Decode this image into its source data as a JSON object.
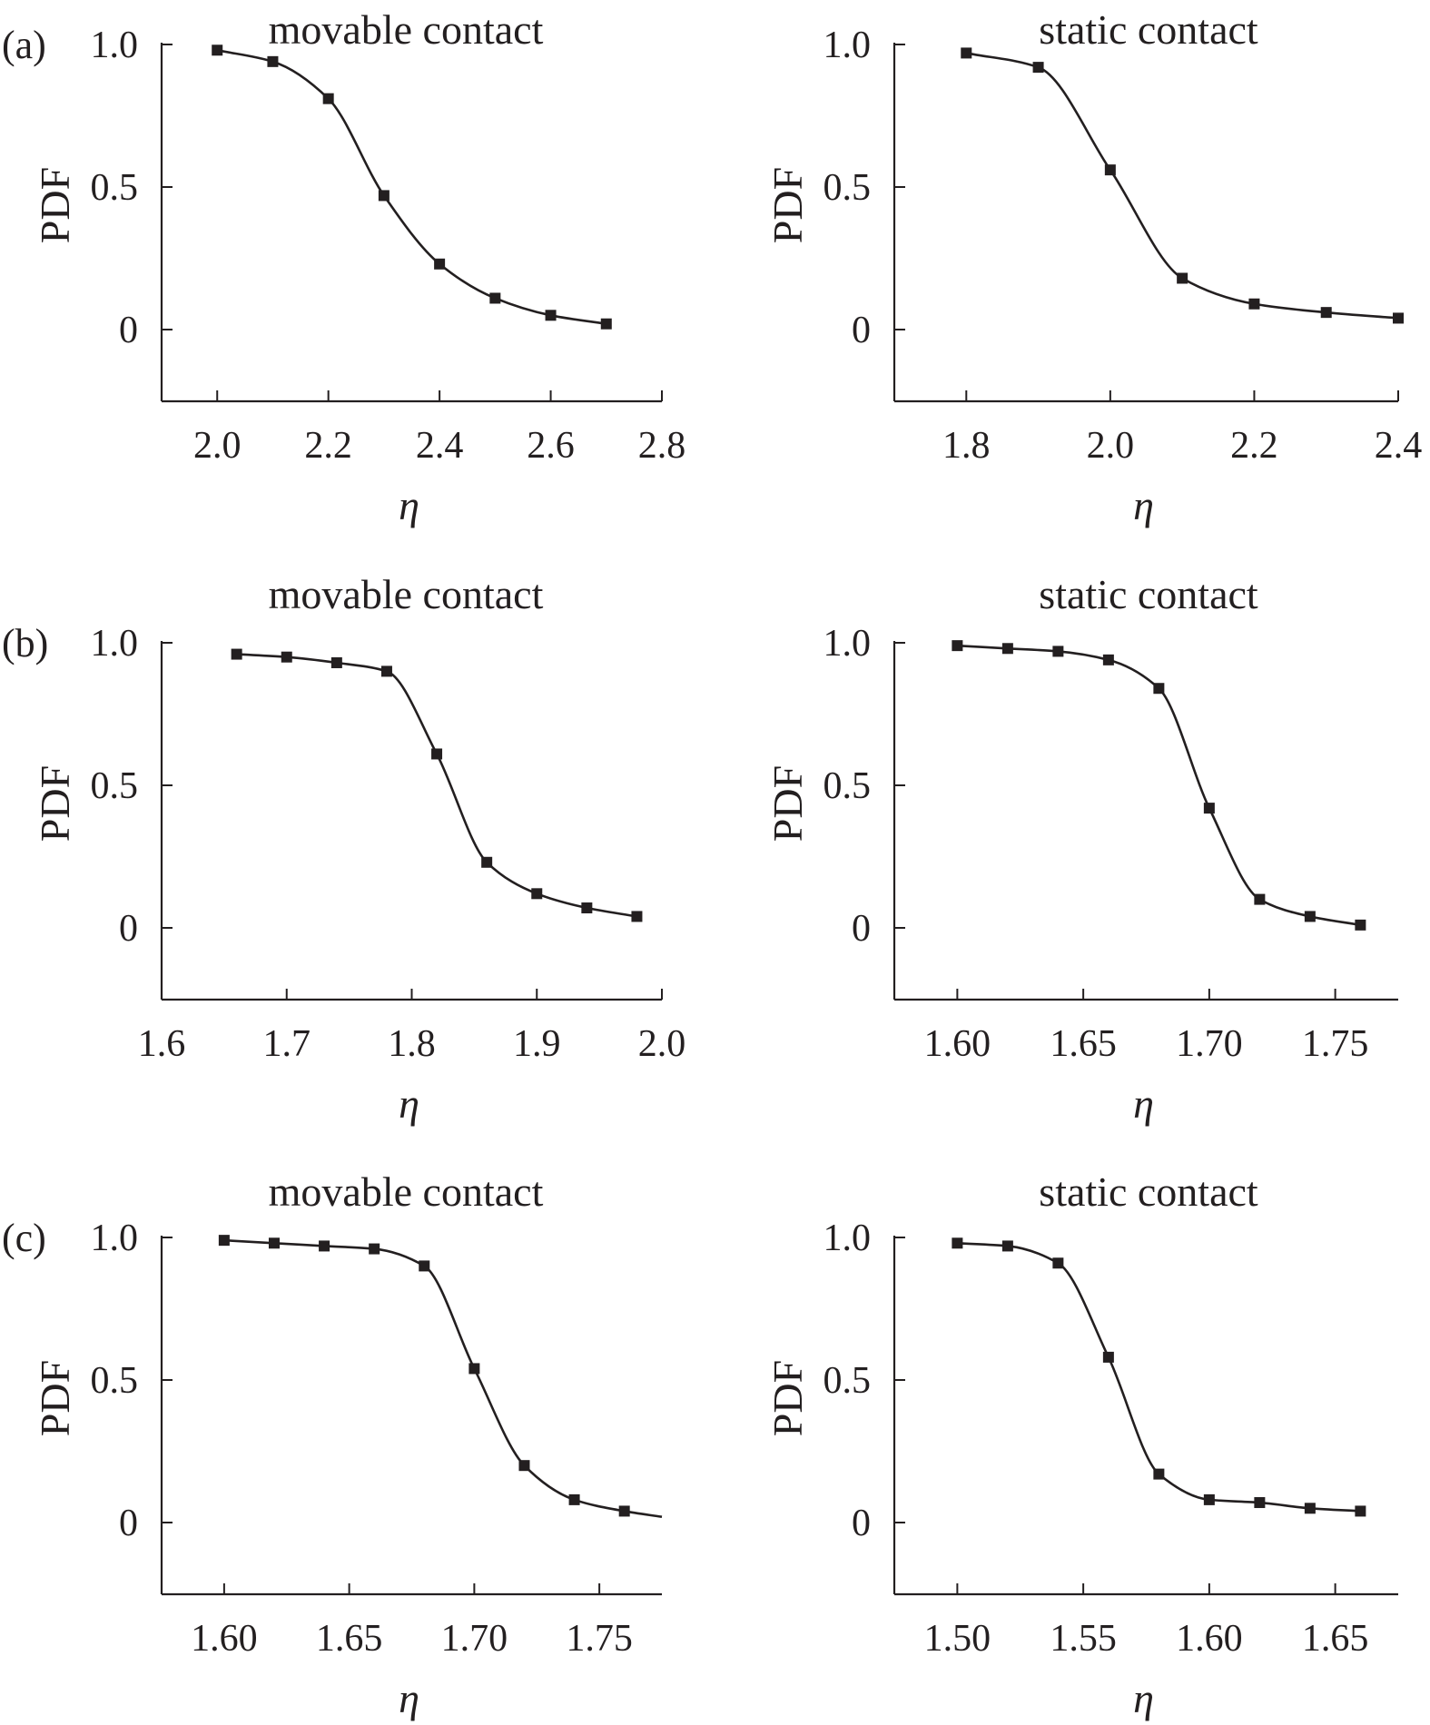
{
  "chart_data": [
    {
      "type": "line",
      "panel_label": "(a)",
      "title": "movable contact",
      "xlabel": "η",
      "ylabel": "PDF",
      "xlim": [
        1.9,
        2.8
      ],
      "ylim": [
        -0.25,
        1.0
      ],
      "xticks": [
        "2.0",
        "2.2",
        "2.4",
        "2.6",
        "2.8"
      ],
      "yticks": [
        "1.0",
        "0.5",
        "0"
      ],
      "x": [
        2.0,
        2.1,
        2.2,
        2.3,
        2.4,
        2.5,
        2.6,
        2.7
      ],
      "y": [
        0.98,
        0.94,
        0.81,
        0.47,
        0.23,
        0.11,
        0.05,
        0.02
      ]
    },
    {
      "type": "line",
      "panel_label": "",
      "title": "static contact",
      "xlabel": "η",
      "ylabel": "PDF",
      "xlim": [
        1.7,
        2.4
      ],
      "ylim": [
        -0.25,
        1.0
      ],
      "xticks": [
        "1.8",
        "2.0",
        "2.2",
        "2.4"
      ],
      "yticks": [
        "1.0",
        "0.5",
        "0"
      ],
      "x": [
        1.8,
        1.9,
        2.0,
        2.1,
        2.2,
        2.3,
        2.4
      ],
      "y": [
        0.97,
        0.92,
        0.56,
        0.18,
        0.09,
        0.06,
        0.04
      ]
    },
    {
      "type": "line",
      "panel_label": "(b)",
      "title": "movable contact",
      "xlabel": "η",
      "ylabel": "PDF",
      "xlim": [
        1.6,
        2.0
      ],
      "ylim": [
        -0.25,
        1.0
      ],
      "xticks": [
        "1.6",
        "1.7",
        "1.8",
        "1.9",
        "2.0"
      ],
      "yticks": [
        "1.0",
        "0.5",
        "0"
      ],
      "x": [
        1.66,
        1.7,
        1.74,
        1.78,
        1.82,
        1.86,
        1.9,
        1.94,
        1.98
      ],
      "y": [
        0.96,
        0.95,
        0.93,
        0.9,
        0.61,
        0.23,
        0.12,
        0.07,
        0.04
      ]
    },
    {
      "type": "line",
      "panel_label": "",
      "title": "static contact",
      "xlabel": "η",
      "ylabel": "PDF",
      "xlim": [
        1.575,
        1.775
      ],
      "ylim": [
        -0.25,
        1.0
      ],
      "xticks": [
        "1.60",
        "1.65",
        "1.70",
        "1.75"
      ],
      "yticks": [
        "1.0",
        "0.5",
        "0"
      ],
      "x": [
        1.6,
        1.62,
        1.64,
        1.66,
        1.68,
        1.7,
        1.72,
        1.74,
        1.76
      ],
      "y": [
        0.99,
        0.98,
        0.97,
        0.94,
        0.84,
        0.42,
        0.1,
        0.04,
        0.01
      ]
    },
    {
      "type": "line",
      "panel_label": "(c)",
      "title": "movable contact",
      "xlabel": "η",
      "ylabel": "PDF",
      "xlim": [
        1.575,
        1.775
      ],
      "ylim": [
        -0.25,
        1.0
      ],
      "xticks": [
        "1.60",
        "1.65",
        "1.70",
        "1.75"
      ],
      "yticks": [
        "1.0",
        "0.5",
        "0"
      ],
      "x": [
        1.6,
        1.62,
        1.64,
        1.66,
        1.68,
        1.7,
        1.72,
        1.74,
        1.76,
        1.775
      ],
      "y": [
        0.99,
        0.98,
        0.97,
        0.96,
        0.9,
        0.54,
        0.2,
        0.08,
        0.04,
        0.02
      ],
      "markers": [
        true,
        true,
        true,
        true,
        true,
        true,
        true,
        true,
        true,
        false
      ]
    },
    {
      "type": "line",
      "panel_label": "",
      "title": "static contact",
      "xlabel": "η",
      "ylabel": "PDF",
      "xlim": [
        1.475,
        1.675
      ],
      "ylim": [
        -0.25,
        1.0
      ],
      "xticks": [
        "1.50",
        "1.55",
        "1.60",
        "1.65"
      ],
      "yticks": [
        "1.0",
        "0.5",
        "0"
      ],
      "x": [
        1.5,
        1.52,
        1.54,
        1.56,
        1.58,
        1.6,
        1.62,
        1.64,
        1.66
      ],
      "y": [
        0.98,
        0.97,
        0.91,
        0.58,
        0.17,
        0.08,
        0.07,
        0.05,
        0.04
      ]
    }
  ]
}
